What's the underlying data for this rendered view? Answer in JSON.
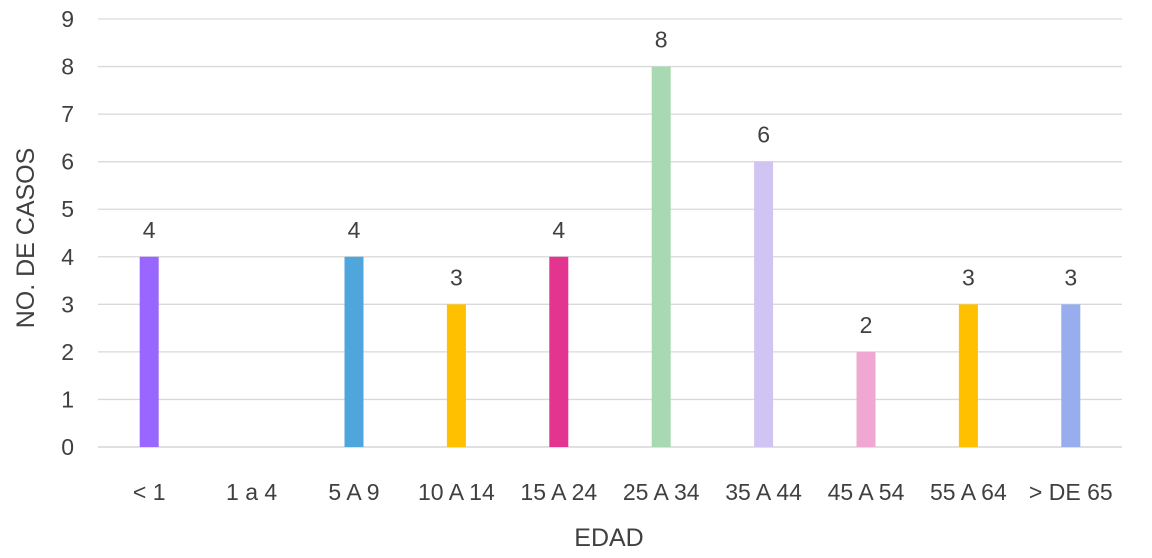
{
  "chart_data": {
    "type": "bar",
    "categories": [
      "< 1",
      "1 a 4",
      "5 A 9",
      "10 A 14",
      "15 A 24",
      "25 A 34",
      "35 A 44",
      "45 A 54",
      "55 A 64",
      "> DE 65"
    ],
    "values": [
      4,
      null,
      4,
      3,
      4,
      8,
      6,
      2,
      3,
      3
    ],
    "data_labels": [
      "4",
      "",
      "4",
      "3",
      "4",
      "8",
      "6",
      "2",
      "3",
      "3"
    ],
    "bar_colors": [
      "#9966ff",
      "#9966ff",
      "#4ea6dc",
      "#ffc000",
      "#e3348f",
      "#a9d9b2",
      "#cfc4f2",
      "#f0a8d2",
      "#ffc000",
      "#97adee"
    ],
    "xlabel": "EDAD",
    "ylabel": "NO. DE CASOS",
    "ylim": [
      0,
      9
    ],
    "yticks": [
      0,
      1,
      2,
      3,
      4,
      5,
      6,
      7,
      8,
      9
    ],
    "grid": true,
    "legend": "none"
  }
}
